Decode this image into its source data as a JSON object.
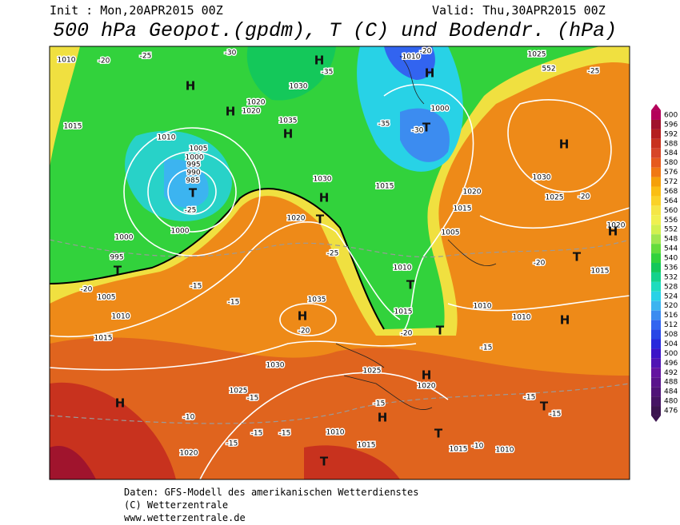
{
  "header": {
    "init": "Init : Mon,20APR2015 00Z",
    "valid": "Valid: Thu,30APR2015 00Z",
    "title": "500 hPa Geopot.(gpdm), T (C) und Bodendr. (hPa)"
  },
  "footer": {
    "line1": "Daten: GFS-Modell des amerikanischen Wetterdienstes",
    "line2": "(C) Wetterzentrale",
    "line3": "www.wetterzentrale.de"
  },
  "colorbar": {
    "levels": [
      600,
      596,
      592,
      588,
      584,
      580,
      576,
      572,
      568,
      564,
      560,
      556,
      552,
      548,
      544,
      540,
      536,
      532,
      528,
      524,
      520,
      516,
      512,
      508,
      504,
      500,
      496,
      492,
      488,
      484,
      480,
      476
    ],
    "colors": [
      "#b4005a",
      "#a0142d",
      "#b41e1e",
      "#c8321e",
      "#d74628",
      "#e65a1e",
      "#f07814",
      "#f5a00a",
      "#fabe14",
      "#fad228",
      "#f5e646",
      "#f0f050",
      "#d2f050",
      "#a0e650",
      "#64dc3c",
      "#32d23c",
      "#14c85a",
      "#14d28c",
      "#1edcbe",
      "#28d2e6",
      "#3cb4f0",
      "#3c8cf0",
      "#3264f0",
      "#2846e6",
      "#2828dc",
      "#3c14c8",
      "#5014b4",
      "#6414a0",
      "#5a148c",
      "#501478",
      "#461464",
      "#3c1450"
    ]
  },
  "map_labels": [
    "1010",
    "-20",
    "-25",
    "-30",
    "1010",
    "-20",
    "1025",
    "552",
    "-25",
    "H",
    "H",
    "H",
    "H",
    "1030",
    "-35",
    "1020",
    "1020",
    "1035",
    "H",
    "1000",
    "T",
    "-35",
    "-30",
    "H",
    "1015",
    "1010",
    "1005",
    "1000",
    "995",
    "990",
    "985",
    "T",
    "-25",
    "1030",
    "H",
    "1015",
    "1030",
    "1025",
    "-20",
    "1020",
    "1015",
    "1020",
    "H",
    "T",
    "1020",
    "1000",
    "1000",
    "995",
    "T",
    "1005",
    "-25",
    "-20",
    "T",
    "1015",
    "1010",
    "T",
    "-20",
    "-15",
    "1005",
    "1035",
    "H",
    "-20",
    "-15",
    "1010",
    "1015",
    "1010",
    "1010",
    "H",
    "1015",
    "-20",
    "T",
    "-15",
    "1030",
    "1025",
    "H",
    "1020",
    "1025",
    "-15",
    "H",
    "-15",
    "-15",
    "T",
    "-15",
    "-10",
    "H",
    "1010",
    "T",
    "-15",
    "-15",
    "-15",
    "1015",
    "1020",
    "1015",
    "-10",
    "1010",
    "T"
  ]
}
